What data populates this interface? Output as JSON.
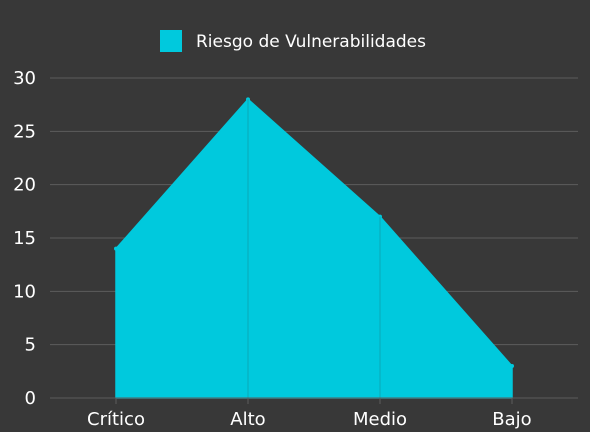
{
  "chart_data": {
    "type": "area",
    "categories": [
      "Crítico",
      "Alto",
      "Medio",
      "Bajo"
    ],
    "series": [
      {
        "name": "Riesgo de Vulnerabilidades",
        "values": [
          14,
          28,
          17,
          3
        ]
      }
    ],
    "ylim": [
      0,
      30
    ],
    "yticks": [
      0,
      5,
      10,
      15,
      20,
      25,
      30
    ],
    "grid": true,
    "legend": "top-center",
    "colors": {
      "background": "#383838",
      "series": "#00c9dd",
      "grid": "#5c5c5c",
      "text": "#ffffff"
    }
  }
}
